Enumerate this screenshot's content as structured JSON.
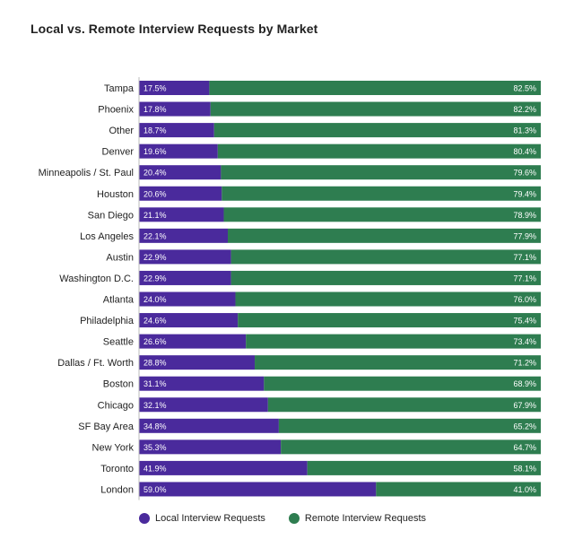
{
  "chart_data": {
    "type": "bar",
    "stacked": true,
    "orientation": "horizontal",
    "title": "Local vs. Remote Interview Requests by Market",
    "categories": [
      "Tampa",
      "Phoenix",
      "Other",
      "Denver",
      "Minneapolis / St. Paul",
      "Houston",
      "San Diego",
      "Los Angeles",
      "Austin",
      "Washington D.C.",
      "Atlanta",
      "Philadelphia",
      "Seattle",
      "Dallas / Ft. Worth",
      "Boston",
      "Chicago",
      "SF Bay Area",
      "New York",
      "Toronto",
      "London"
    ],
    "series": [
      {
        "name": "Local Interview Requests",
        "color": "#4a2a9c",
        "values": [
          17.5,
          17.8,
          18.7,
          19.6,
          20.4,
          20.6,
          21.1,
          22.1,
          22.9,
          22.9,
          24.0,
          24.6,
          26.6,
          28.8,
          31.1,
          32.1,
          34.8,
          35.3,
          41.9,
          59.0
        ],
        "labels": [
          "17.5%",
          "17.8%",
          "18.7%",
          "19.6%",
          "20.4%",
          "20.6%",
          "21.1%",
          "22.1%",
          "22.9%",
          "22.9%",
          "24.0%",
          "24.6%",
          "26.6%",
          "28.8%",
          "31.1%",
          "32.1%",
          "34.8%",
          "35.3%",
          "41.9%",
          "59.0%"
        ]
      },
      {
        "name": "Remote Interview Requests",
        "color": "#2e7d50",
        "values": [
          82.5,
          82.2,
          81.3,
          80.4,
          79.6,
          79.4,
          78.9,
          77.9,
          77.1,
          77.1,
          76.0,
          75.4,
          73.4,
          71.2,
          68.9,
          67.9,
          65.2,
          64.7,
          58.1,
          41.0
        ],
        "labels": [
          "82.5%",
          "82.2%",
          "81.3%",
          "80.4%",
          "79.6%",
          "79.4%",
          "78.9%",
          "77.9%",
          "77.1%",
          "77.1%",
          "76.0%",
          "75.4%",
          "73.4%",
          "71.2%",
          "68.9%",
          "67.9%",
          "65.2%",
          "64.7%",
          "58.1%",
          "41.0%"
        ]
      }
    ],
    "xlim": [
      0,
      100
    ],
    "grid": false,
    "legend_position": "bottom"
  }
}
